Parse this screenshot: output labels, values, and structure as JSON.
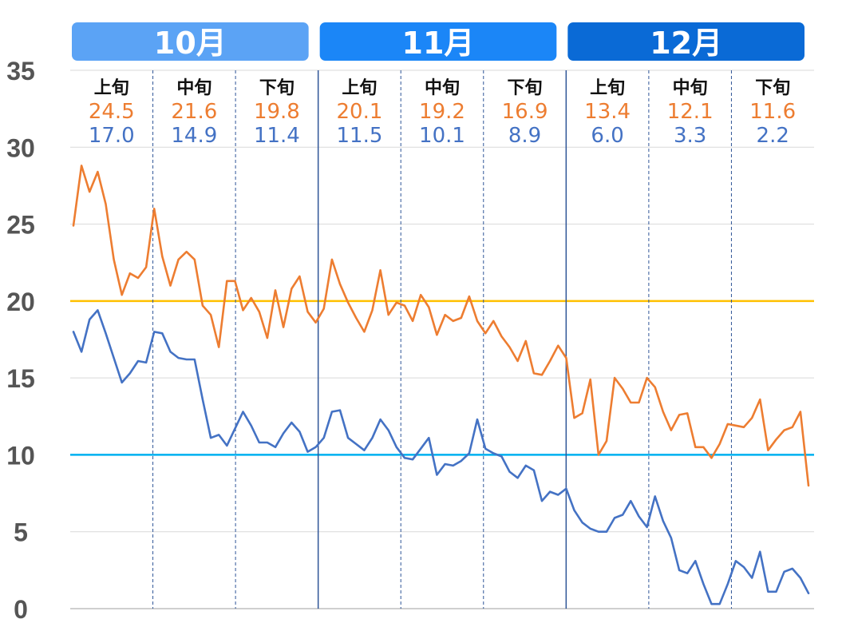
{
  "colors": {
    "high": "#ED7D31",
    "low": "#4472C4",
    "ref20": "#FFC000",
    "ref10": "#00B0F0",
    "month_boxes": [
      "#5BA3F5",
      "#1B86F7",
      "#0A6AD6"
    ],
    "grid": "#d9d9d9",
    "ytick": "#555555"
  },
  "chart_data": {
    "type": "line",
    "ylim": [
      0,
      35
    ],
    "yticks": [
      "0",
      "5",
      "10",
      "15",
      "20",
      "25",
      "30",
      "35"
    ],
    "months": [
      "10月",
      "11月",
      "12月"
    ],
    "dekads": [
      {
        "label": "上旬",
        "high": "24.5",
        "low": "17.0"
      },
      {
        "label": "中旬",
        "high": "21.6",
        "low": "14.9"
      },
      {
        "label": "下旬",
        "high": "19.8",
        "low": "11.4"
      },
      {
        "label": "上旬",
        "high": "20.1",
        "low": "11.5"
      },
      {
        "label": "中旬",
        "high": "19.2",
        "low": "10.1"
      },
      {
        "label": "下旬",
        "high": "16.9",
        "low": "8.9"
      },
      {
        "label": "上旬",
        "high": "13.4",
        "low": "6.0"
      },
      {
        "label": "中旬",
        "high": "12.1",
        "low": "3.3"
      },
      {
        "label": "下旬",
        "high": "11.6",
        "low": "2.2"
      }
    ],
    "reference_lines": [
      20,
      10
    ],
    "series": [
      {
        "key": "high",
        "values": [
          24.9,
          28.8,
          27.1,
          28.4,
          26.3,
          22.7,
          20.4,
          21.8,
          21.5,
          22.2,
          26.0,
          22.9,
          21.0,
          22.7,
          23.2,
          22.7,
          19.7,
          19.1,
          17.0,
          21.3,
          21.3,
          19.4,
          20.2,
          19.3,
          17.6,
          20.7,
          18.3,
          20.8,
          21.6,
          19.3,
          18.6,
          19.5,
          22.7,
          21.1,
          19.9,
          18.9,
          18.0,
          19.4,
          22.0,
          19.1,
          19.9,
          19.7,
          18.7,
          20.4,
          19.6,
          17.8,
          19.1,
          18.7,
          18.9,
          20.3,
          18.7,
          17.9,
          18.7,
          17.7,
          17.0,
          16.1,
          17.4,
          15.3,
          15.2,
          16.1,
          17.1,
          16.3,
          12.4,
          12.7,
          14.9,
          10.0,
          10.9,
          15.0,
          14.3,
          13.4,
          13.4,
          15.0,
          14.4,
          12.8,
          11.6,
          12.6,
          12.7,
          10.5,
          10.5,
          9.8,
          10.7,
          12.0,
          11.9,
          11.8,
          12.4,
          13.6,
          10.3,
          11.0,
          11.6,
          11.8,
          12.8,
          8.0
        ]
      },
      {
        "key": "low",
        "values": [
          18.0,
          16.7,
          18.8,
          19.4,
          17.9,
          16.3,
          14.7,
          15.3,
          16.1,
          16.0,
          18.0,
          17.9,
          16.7,
          16.3,
          16.2,
          16.2,
          13.6,
          11.1,
          11.3,
          10.6,
          11.7,
          12.8,
          11.9,
          10.8,
          10.8,
          10.5,
          11.4,
          12.1,
          11.5,
          10.2,
          10.5,
          11.1,
          12.8,
          12.9,
          11.1,
          10.7,
          10.3,
          11.1,
          12.3,
          11.6,
          10.5,
          9.8,
          9.7,
          10.4,
          11.1,
          8.7,
          9.4,
          9.3,
          9.6,
          10.1,
          12.3,
          10.4,
          10.1,
          9.9,
          8.9,
          8.5,
          9.3,
          9.0,
          7.0,
          7.6,
          7.4,
          7.8,
          6.4,
          5.6,
          5.2,
          5.0,
          5.0,
          5.9,
          6.1,
          7.0,
          6.0,
          5.3,
          7.3,
          5.7,
          4.6,
          2.5,
          2.3,
          3.1,
          1.6,
          0.3,
          0.3,
          1.6,
          3.1,
          2.7,
          2.0,
          3.7,
          1.1,
          1.1,
          2.4,
          2.6,
          2.0,
          1.0
        ]
      }
    ]
  }
}
